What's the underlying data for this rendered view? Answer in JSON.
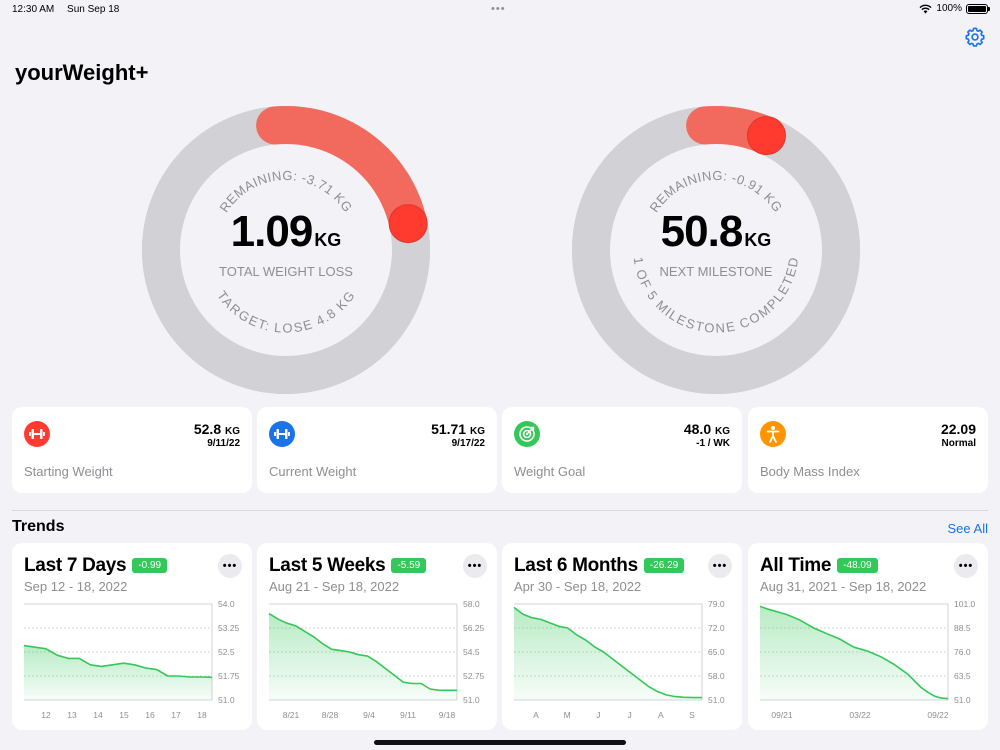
{
  "status": {
    "time": "12:30 AM",
    "date": "Sun Sep 18",
    "battery": "100%",
    "battery_level": 1.0
  },
  "app": {
    "title": "yourWeight+"
  },
  "icons": {
    "settings": "gear-icon",
    "wifi": "wifi-icon",
    "battery": "battery-icon"
  },
  "colors": {
    "accent": "#ff3b30",
    "ring_fill": "#f26a5e",
    "ring_track": "#d1d1d6",
    "trend_green": "#34c759",
    "link": "#1a73e8"
  },
  "rings": [
    {
      "value": "1.09",
      "unit": "KG",
      "label": "TOTAL WEIGHT LOSS",
      "top_text": "REMAINING: -3.71 KG",
      "bottom_text": "TARGET: LOSE 4.8 KG",
      "progress": 0.23
    },
    {
      "value": "50.8",
      "unit": "KG",
      "label": "NEXT MILESTONE",
      "top_text": "REMAINING: -0.91 KG",
      "bottom_text": "1 OF 5 MILESTONE COMPLETED",
      "progress": 0.08
    }
  ],
  "stats": [
    {
      "icon": "dumbbell-icon",
      "color": "#ff3b30",
      "value": "52.8",
      "unit": "KG",
      "sub": "9/11/22",
      "label": "Starting Weight"
    },
    {
      "icon": "dumbbell-icon",
      "color": "#1a73e8",
      "value": "51.71",
      "unit": "KG",
      "sub": "9/17/22",
      "label": "Current Weight"
    },
    {
      "icon": "target-icon",
      "color": "#34c759",
      "value": "48.0",
      "unit": "KG",
      "sub": "-1 / WK",
      "label": "Weight Goal"
    },
    {
      "icon": "person-icon",
      "color": "#ff9500",
      "value": "22.09",
      "unit": "",
      "sub": "Normal",
      "label": "Body Mass Index"
    }
  ],
  "trends": {
    "title": "Trends",
    "see_all": "See All",
    "cards": [
      {
        "title": "Last 7 Days",
        "badge": "-0.99",
        "range": "Sep 12 - 18, 2022",
        "y_ticks": [
          "54.0",
          "53.25",
          "52.5",
          "51.75",
          "51.0"
        ],
        "ylim": [
          51.0,
          54.0
        ],
        "x_ticks": [
          "12",
          "13",
          "14",
          "15",
          "16",
          "17",
          "18"
        ],
        "values": [
          52.7,
          52.65,
          52.6,
          52.4,
          52.3,
          52.3,
          52.1,
          52.05,
          52.1,
          52.15,
          52.1,
          52.0,
          51.95,
          51.75,
          51.75,
          51.72,
          51.72,
          51.71
        ]
      },
      {
        "title": "Last 5 Weeks",
        "badge": "-5.59",
        "range": "Aug 21 - Sep 18, 2022",
        "y_ticks": [
          "58.0",
          "56.25",
          "54.5",
          "52.75",
          "51.0"
        ],
        "ylim": [
          51.0,
          58.0
        ],
        "x_ticks": [
          "8/21",
          "8/28",
          "9/4",
          "9/11",
          "9/18"
        ],
        "values": [
          57.3,
          56.9,
          56.6,
          56.4,
          56.0,
          55.6,
          55.1,
          54.7,
          54.6,
          54.5,
          54.3,
          54.2,
          53.8,
          53.3,
          52.8,
          52.3,
          52.2,
          52.2,
          51.8,
          51.71,
          51.71,
          51.71
        ]
      },
      {
        "title": "Last 6 Months",
        "badge": "-26.29",
        "range": "Apr 30 - Sep 18, 2022",
        "y_ticks": [
          "79.0",
          "72.0",
          "65.0",
          "58.0",
          "51.0"
        ],
        "ylim": [
          51.0,
          79.0
        ],
        "x_ticks": [
          "A",
          "M",
          "J",
          "J",
          "A",
          "S"
        ],
        "values": [
          78.0,
          76.0,
          75.0,
          74.5,
          73.5,
          72.5,
          72.0,
          70.0,
          68.5,
          66.5,
          65.0,
          63.0,
          61.0,
          59.0,
          57.0,
          55.0,
          53.5,
          52.5,
          52.0,
          51.8,
          51.71,
          51.71
        ]
      },
      {
        "title": "All Time",
        "badge": "-48.09",
        "range": "Aug 31, 2021 - Sep 18, 2022",
        "y_ticks": [
          "101.0",
          "88.5",
          "76.0",
          "63.5",
          "51.0"
        ],
        "ylim": [
          51.0,
          101.0
        ],
        "x_ticks": [
          "09/21",
          "03/22",
          "09/22"
        ],
        "values": [
          99.8,
          98.5,
          97.5,
          96.5,
          95.5,
          94.0,
          92.5,
          90.5,
          88.5,
          87.0,
          85.5,
          84.0,
          82.5,
          80.5,
          78.5,
          77.5,
          76.5,
          75.0,
          73.5,
          71.5,
          69.5,
          67.0,
          64.5,
          61.0,
          57.5,
          55.0,
          53.0,
          52.0,
          51.71
        ]
      }
    ]
  }
}
